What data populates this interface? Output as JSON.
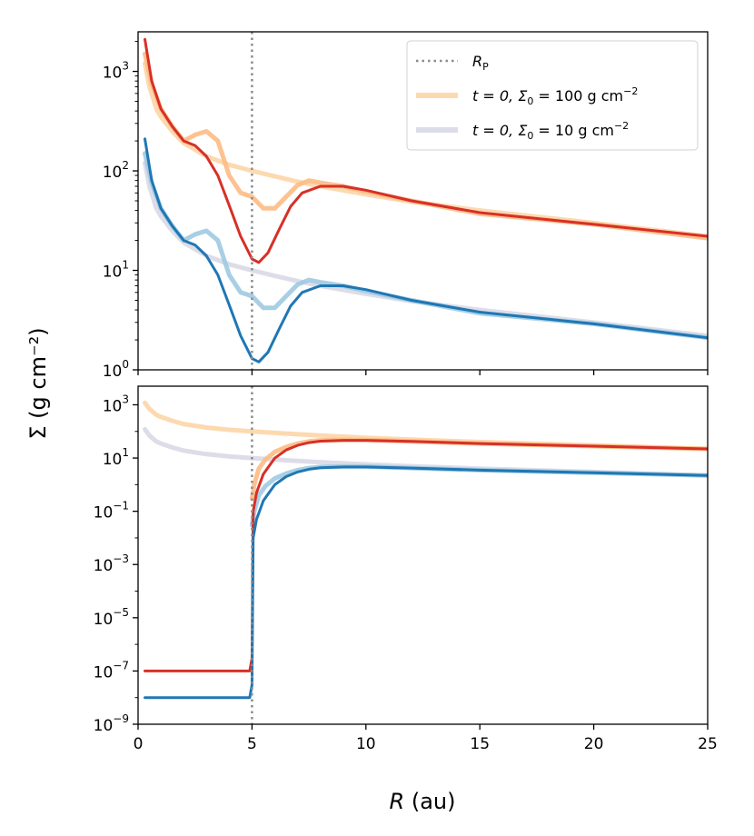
{
  "figure": {
    "ylabel": "Σ (g cm⁻²)",
    "xlabel_italic": "R",
    "xlabel_unit": " (au)"
  },
  "chart_data": [
    {
      "type": "line",
      "panel": "top",
      "xlim": [
        0,
        25
      ],
      "ylim": [
        1,
        2500
      ],
      "yscale": "log",
      "xticks": [
        0,
        5,
        10,
        15,
        20,
        25
      ],
      "yticks": [
        {
          "value": 1,
          "mant": "10",
          "exp": "0"
        },
        {
          "value": 10,
          "mant": "10",
          "exp": "1"
        },
        {
          "value": 100,
          "mant": "10",
          "exp": "2"
        },
        {
          "value": 1000,
          "mant": "10",
          "exp": "3"
        }
      ],
      "vline": 5,
      "legend": {
        "position": "top-right",
        "entries": [
          {
            "key": "rp",
            "style": "dotted",
            "color": "#8c8c8c",
            "label": "R",
            "label_sub": "P"
          },
          {
            "key": "ic100",
            "style": "line",
            "color": "#fdd9b0",
            "label": "t = 0, Σ",
            "label_sub": "0",
            "label_tail": " = 100 g cm",
            "label_sup": "−2"
          },
          {
            "key": "ic10",
            "style": "line",
            "color": "#dddde9",
            "label": "t = 0, Σ",
            "label_sub": "0",
            "label_tail": " = 10 g cm",
            "label_sup": "−2"
          }
        ]
      },
      "series": [
        {
          "color": "#fdd9b0",
          "width": 5,
          "opacity": 1,
          "x": [
            0.3,
            0.5,
            0.8,
            1,
            1.5,
            2,
            3,
            4,
            5,
            6,
            7,
            8,
            10,
            12,
            15,
            20,
            25
          ],
          "y": [
            1200,
            700,
            420,
            350,
            250,
            190,
            140,
            115,
            100,
            88,
            78,
            70,
            58,
            49,
            40,
            30,
            22
          ]
        },
        {
          "color": "#dddde9",
          "width": 5,
          "opacity": 1,
          "x": [
            0.3,
            0.5,
            0.8,
            1,
            1.5,
            2,
            3,
            4,
            5,
            6,
            7,
            8,
            10,
            12,
            15,
            20,
            25
          ],
          "y": [
            120,
            70,
            42,
            35,
            25,
            19,
            14,
            11.5,
            10,
            8.8,
            7.8,
            7,
            5.8,
            4.9,
            4,
            3,
            2.2
          ]
        },
        {
          "color": "#fdbb84",
          "width": 5,
          "opacity": 0.9,
          "x": [
            0.3,
            0.6,
            1,
            1.5,
            2,
            2.5,
            3,
            3.5,
            4,
            4.5,
            5,
            5.5,
            6,
            6.5,
            7,
            7.5,
            8,
            9,
            10,
            12,
            15,
            20,
            25
          ],
          "y": [
            1500,
            750,
            420,
            280,
            200,
            230,
            250,
            200,
            90,
            60,
            55,
            42,
            42,
            55,
            72,
            80,
            76,
            70,
            62,
            50,
            37,
            29,
            21
          ]
        },
        {
          "color": "#9ecae1",
          "width": 5,
          "opacity": 0.9,
          "x": [
            0.3,
            0.6,
            1,
            1.5,
            2,
            2.5,
            3,
            3.5,
            4,
            4.5,
            5,
            5.5,
            6,
            6.5,
            7,
            7.5,
            8,
            9,
            10,
            12,
            15,
            20,
            25
          ],
          "y": [
            150,
            75,
            42,
            28,
            20,
            23,
            25,
            20,
            9,
            6,
            5.5,
            4.2,
            4.2,
            5.5,
            7.2,
            8,
            7.6,
            7,
            6.2,
            5,
            3.7,
            2.9,
            2.1
          ]
        },
        {
          "color": "#d73027",
          "width": 3,
          "opacity": 1,
          "x": [
            0.3,
            0.6,
            1,
            1.5,
            2,
            2.5,
            3,
            3.5,
            4,
            4.5,
            5,
            5.3,
            5.7,
            6.2,
            6.7,
            7.2,
            8,
            9,
            10,
            12,
            15,
            20,
            25
          ],
          "y": [
            2100,
            800,
            420,
            280,
            200,
            180,
            140,
            90,
            45,
            22,
            13,
            12,
            15,
            26,
            44,
            60,
            70,
            70,
            64,
            50,
            38,
            29,
            22
          ]
        },
        {
          "color": "#1f77b4",
          "width": 3,
          "opacity": 1,
          "x": [
            0.3,
            0.6,
            1,
            1.5,
            2,
            2.5,
            3,
            3.5,
            4,
            4.5,
            5,
            5.3,
            5.7,
            6.2,
            6.7,
            7.2,
            8,
            9,
            10,
            12,
            15,
            20,
            25
          ],
          "y": [
            210,
            80,
            42,
            28,
            20,
            18,
            14,
            9,
            4.5,
            2.2,
            1.3,
            1.2,
            1.5,
            2.6,
            4.4,
            6,
            7,
            7,
            6.4,
            5,
            3.8,
            2.9,
            2.1
          ]
        }
      ]
    },
    {
      "type": "line",
      "panel": "bottom",
      "xlabel": "R (au)",
      "xlim": [
        0,
        25
      ],
      "ylim": [
        1e-09,
        5000
      ],
      "yscale": "log",
      "xticks": [
        0,
        5,
        10,
        15,
        20,
        25
      ],
      "yticks": [
        {
          "value": 1e-09,
          "mant": "10",
          "exp": "−9"
        },
        {
          "value": 1e-07,
          "mant": "10",
          "exp": "−7"
        },
        {
          "value": 1e-05,
          "mant": "10",
          "exp": "−5"
        },
        {
          "value": 0.001,
          "mant": "10",
          "exp": "−3"
        },
        {
          "value": 0.1,
          "mant": "10",
          "exp": "−1"
        },
        {
          "value": 10,
          "mant": "10",
          "exp": "1"
        },
        {
          "value": 1000,
          "mant": "10",
          "exp": "3"
        }
      ],
      "vline": 5,
      "series": [
        {
          "color": "#fdd9b0",
          "width": 5,
          "opacity": 1,
          "x": [
            0.3,
            0.5,
            0.8,
            1,
            1.5,
            2,
            3,
            4,
            5,
            6,
            7,
            8,
            10,
            12,
            15,
            20,
            25
          ],
          "y": [
            1200,
            700,
            420,
            350,
            250,
            190,
            140,
            115,
            100,
            88,
            78,
            70,
            58,
            49,
            40,
            30,
            22
          ]
        },
        {
          "color": "#dddde9",
          "width": 5,
          "opacity": 1,
          "x": [
            0.3,
            0.5,
            0.8,
            1,
            1.5,
            2,
            3,
            4,
            5,
            6,
            7,
            8,
            10,
            12,
            15,
            20,
            25
          ],
          "y": [
            120,
            70,
            42,
            35,
            25,
            19,
            14,
            11.5,
            10,
            8.8,
            7.8,
            7,
            5.8,
            4.9,
            4,
            3,
            2.2
          ]
        },
        {
          "color": "#fdbb84",
          "width": 5,
          "opacity": 0.9,
          "x": [
            5,
            5.1,
            5.3,
            5.6,
            6,
            6.5,
            7,
            7.5,
            8,
            9,
            10,
            12,
            15,
            20,
            25
          ],
          "y": [
            0.3,
            1,
            4,
            9,
            17,
            26,
            35,
            42,
            46,
            48,
            48,
            42,
            35,
            28,
            22
          ]
        },
        {
          "color": "#9ecae1",
          "width": 5,
          "opacity": 0.9,
          "x": [
            5,
            5.1,
            5.3,
            5.6,
            6,
            6.5,
            7,
            7.5,
            8,
            9,
            10,
            12,
            15,
            20,
            25
          ],
          "y": [
            0.03,
            0.1,
            0.4,
            0.9,
            1.7,
            2.6,
            3.5,
            4.2,
            4.6,
            4.8,
            4.8,
            4.2,
            3.5,
            2.8,
            2.2
          ]
        },
        {
          "color": "#d73027",
          "width": 3,
          "opacity": 1,
          "x": [
            0.3,
            4.9,
            5,
            5.05,
            5.2,
            5.5,
            6,
            6.5,
            7,
            7.5,
            8,
            9,
            10,
            12,
            15,
            20,
            25
          ],
          "y": [
            1e-07,
            1e-07,
            3e-07,
            0.1,
            0.5,
            2.5,
            10,
            20,
            30,
            38,
            43,
            46,
            46,
            42,
            35,
            28,
            22
          ]
        },
        {
          "color": "#1f77b4",
          "width": 3,
          "opacity": 1,
          "x": [
            0.3,
            4.9,
            5,
            5.05,
            5.2,
            5.5,
            6,
            6.5,
            7,
            7.5,
            8,
            9,
            10,
            12,
            15,
            20,
            25
          ],
          "y": [
            1e-08,
            1e-08,
            3e-08,
            0.01,
            0.05,
            0.25,
            1,
            2,
            3,
            3.8,
            4.3,
            4.6,
            4.6,
            4.2,
            3.5,
            2.8,
            2.2
          ]
        }
      ]
    }
  ]
}
